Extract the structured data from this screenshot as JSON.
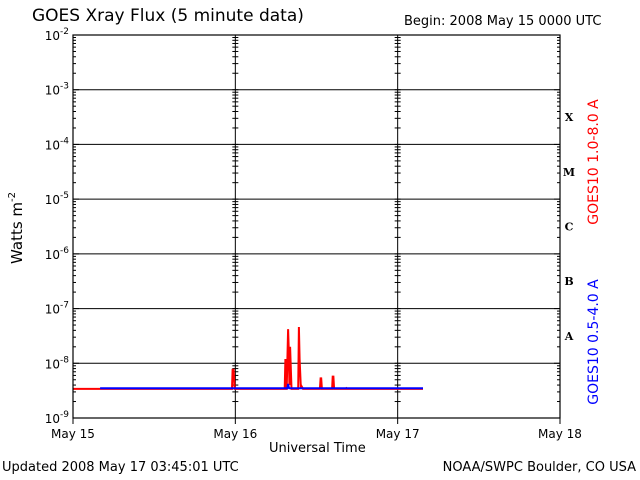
{
  "header": {
    "title": "GOES Xray Flux (5 minute data)",
    "begin": "Begin:  2008 May 15 0000 UTC"
  },
  "footer": {
    "updated": "Updated 2008 May 17 03:45:01 UTC",
    "credit": "NOAA/SWPC Boulder, CO USA"
  },
  "colors": {
    "long": "#ff0000",
    "short": "#0000ff",
    "frame": "#000000"
  },
  "chart_data": {
    "type": "line",
    "title": "GOES Xray Flux (5 minute data)",
    "xlabel": "Universal Time",
    "ylabel": "Watts m",
    "ylabel_sup": "-2",
    "yscale": "log",
    "ylim": [
      1e-09,
      0.01
    ],
    "xlim": [
      0,
      72
    ],
    "x_units": "hours since 2008 May 15 0000 UTC",
    "x_ticks": [
      {
        "x": 0,
        "label": "May 15"
      },
      {
        "x": 24,
        "label": "May 16"
      },
      {
        "x": 48,
        "label": "May 17"
      },
      {
        "x": 72,
        "label": "May 18"
      }
    ],
    "y_ticks": [
      {
        "exp": -9,
        "base": "10",
        "sup": "-9"
      },
      {
        "exp": -8,
        "base": "10",
        "sup": "-8"
      },
      {
        "exp": -7,
        "base": "10",
        "sup": "-7"
      },
      {
        "exp": -6,
        "base": "10",
        "sup": "-6"
      },
      {
        "exp": -5,
        "base": "10",
        "sup": "-5"
      },
      {
        "exp": -4,
        "base": "10",
        "sup": "-4"
      },
      {
        "exp": -3,
        "base": "10",
        "sup": "-3"
      },
      {
        "exp": -2,
        "base": "10",
        "sup": "-2"
      }
    ],
    "flare_classes": [
      {
        "label": "A",
        "exp": -7.5
      },
      {
        "label": "B",
        "exp": -6.5
      },
      {
        "label": "C",
        "exp": -5.5
      },
      {
        "label": "M",
        "exp": -4.5
      },
      {
        "label": "X",
        "exp": -3.5
      }
    ],
    "grid": "horizontal at each decade",
    "legend": "right side, vertical labels",
    "series": [
      {
        "name": "GOES10 1.0-8.0 A",
        "color": "#ff0000",
        "x": [
          0,
          23.5,
          23.6,
          23.75,
          23.9,
          24,
          28.6,
          31.3,
          31.4,
          31.5,
          31.6,
          31.8,
          31.9,
          32,
          32.1,
          32.3,
          33.3,
          33.4,
          33.5,
          33.7,
          33.8,
          34,
          36.5,
          36.6,
          36.7,
          36.8,
          38.3,
          38.4,
          38.5,
          38.6,
          40.3,
          40.4,
          40.5,
          40.6,
          48,
          51.75
        ],
        "y": [
          3.4e-09,
          3.4e-09,
          7.6e-09,
          7.6e-09,
          3.4e-09,
          3.4e-09,
          3.4e-09,
          3.4e-09,
          1.2e-08,
          3.4e-09,
          3.4e-09,
          4.2e-08,
          1.7e-08,
          4e-09,
          2e-08,
          3.4e-09,
          3.4e-09,
          4.6e-08,
          1.2e-08,
          3.4e-09,
          3.8e-09,
          3.4e-09,
          3.4e-09,
          5.3e-09,
          5.3e-09,
          3.4e-09,
          3.4e-09,
          5.7e-09,
          5.7e-09,
          3.4e-09,
          3.4e-09,
          3.5e-09,
          3.4e-09,
          3.4e-09,
          3.4e-09,
          3.4e-09
        ]
      },
      {
        "name": "GOES10 0.5-4.0 A",
        "color": "#0000ff",
        "x": [
          4,
          31.7,
          31.8,
          31.9,
          32.0,
          51.75
        ],
        "y": [
          3.5e-09,
          3.5e-09,
          4.2e-09,
          3.6e-09,
          3.5e-09,
          3.5e-09
        ]
      }
    ]
  }
}
